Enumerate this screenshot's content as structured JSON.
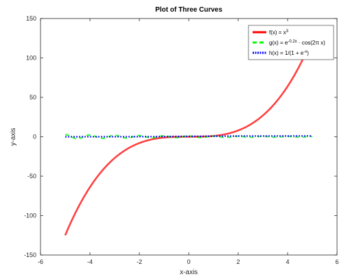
{
  "chart_data": {
    "type": "line",
    "title": "Plot of Three Curves",
    "xlabel": "x-axis",
    "ylabel": "y-axis",
    "xlim": [
      -6,
      6
    ],
    "ylim": [
      -150,
      150
    ],
    "xticks": [
      -6,
      -4,
      -2,
      0,
      2,
      4,
      6
    ],
    "yticks": [
      -150,
      -100,
      -50,
      0,
      50,
      100,
      150
    ],
    "xtick_labels": [
      "-6",
      "-4",
      "-2",
      "0",
      "2",
      "4",
      "6"
    ],
    "ytick_labels": [
      "-150",
      "-100",
      "-50",
      "0",
      "50",
      "100",
      "150"
    ],
    "grid": false,
    "legend_position": "top-right",
    "x_range": [
      -5,
      5
    ],
    "series": [
      {
        "name": "f(x) = x³",
        "color": "#ff0000",
        "style": "solid",
        "values_at_x": {
          "x": [
            -5,
            -4,
            -3,
            -2,
            -1,
            0,
            1,
            2,
            3,
            4,
            5
          ],
          "y": [
            -125,
            -64,
            -27,
            -8,
            -1,
            0,
            1,
            8,
            27,
            64,
            125
          ]
        }
      },
      {
        "name": "g(x) = e^(-0.2x) · cos(2πx)",
        "color": "#00ff00",
        "style": "dashed",
        "values_at_x": {
          "x": [
            -5,
            -4,
            -3,
            -2,
            -1,
            0,
            1,
            2,
            3,
            4,
            5
          ],
          "y": [
            2.72,
            2.23,
            1.82,
            1.49,
            1.22,
            1,
            0.82,
            0.67,
            0.55,
            0.45,
            0.37
          ]
        }
      },
      {
        "name": "h(x) = 1/(1 + e^(-x))",
        "color": "#0000ff",
        "style": "dotted",
        "values_at_x": {
          "x": [
            -5,
            -4,
            -3,
            -2,
            -1,
            0,
            1,
            2,
            3,
            4,
            5
          ],
          "y": [
            0.007,
            0.018,
            0.047,
            0.119,
            0.269,
            0.5,
            0.731,
            0.881,
            0.953,
            0.982,
            0.993
          ]
        }
      }
    ]
  },
  "legend": {
    "items": [
      {
        "prefix": "f(x) = x",
        "sup": "3",
        "suffix": ""
      },
      {
        "prefix": "g(x) = e",
        "sup": "-0.2x",
        "suffix": " · cos(2π x)"
      },
      {
        "prefix": "h(x) = 1/(1 + e",
        "sup": "-x",
        "suffix": ")"
      }
    ]
  }
}
